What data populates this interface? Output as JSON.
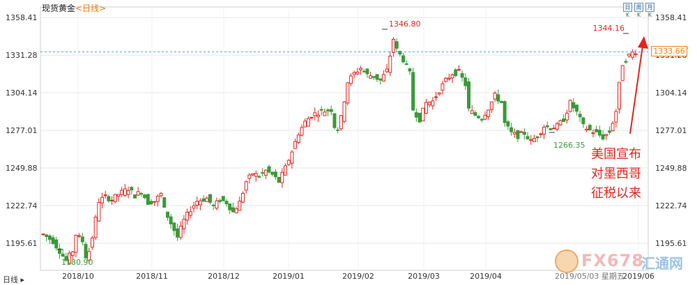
{
  "header": {
    "instrument": "现货黄金",
    "timeframe": "<日线>",
    "tools": [
      "日K",
      "周K",
      "月K"
    ]
  },
  "period_button": "日线 ▸",
  "current_price_label": "1333.66",
  "annotation": {
    "lines": [
      "美国宣布",
      "对墨西哥",
      "征税以来"
    ]
  },
  "watermark": {
    "brand": "FX678",
    "brand_cn": "汇通网",
    "date": "2019/05/03  星期五"
  },
  "colors": {
    "up": "#e0261f",
    "down": "#3a9a3a",
    "grid": "#e6e6e6",
    "axis_text": "#333333",
    "hline": "#4aa3df",
    "annot": "#e0261f",
    "marker_high": "#e0261f",
    "marker_low": "#3a9a3a"
  },
  "chart_data": {
    "type": "candlestick",
    "title": "现货黄金",
    "y_ticks": [
      1195.61,
      1222.74,
      1249.88,
      1277.01,
      1304.14,
      1331.28,
      1358.41
    ],
    "y_range": [
      1176.0,
      1364.0
    ],
    "x_ticks": [
      "2018/10",
      "2018/11",
      "2018/12",
      "2019/01",
      "2019/02",
      "2019/03",
      "2019/04",
      "2019/06"
    ],
    "current_price": 1333.66,
    "horizontal_line": 1333.66,
    "series_shape": [
      [
        0,
        1202
      ],
      [
        3,
        1197
      ],
      [
        5,
        1190
      ],
      [
        7,
        1183
      ],
      [
        9,
        1190
      ],
      [
        10,
        1202
      ],
      [
        12,
        1197
      ],
      [
        13,
        1186
      ],
      [
        14,
        1190
      ],
      [
        15,
        1200
      ],
      [
        17,
        1226
      ],
      [
        19,
        1229
      ],
      [
        21,
        1227
      ],
      [
        23,
        1231
      ],
      [
        26,
        1235
      ],
      [
        28,
        1230
      ],
      [
        30,
        1233
      ],
      [
        32,
        1225
      ],
      [
        34,
        1226
      ],
      [
        36,
        1231
      ],
      [
        37,
        1220
      ],
      [
        39,
        1210
      ],
      [
        40,
        1205
      ],
      [
        41,
        1200
      ],
      [
        43,
        1212
      ],
      [
        45,
        1220
      ],
      [
        47,
        1226
      ],
      [
        50,
        1228
      ],
      [
        52,
        1222
      ],
      [
        54,
        1227
      ],
      [
        56,
        1225
      ],
      [
        58,
        1218
      ],
      [
        60,
        1225
      ],
      [
        62,
        1240
      ],
      [
        64,
        1246
      ],
      [
        66,
        1244
      ],
      [
        68,
        1248
      ],
      [
        70,
        1245
      ],
      [
        72,
        1240
      ],
      [
        74,
        1250
      ],
      [
        76,
        1262
      ],
      [
        78,
        1275
      ],
      [
        80,
        1283
      ],
      [
        82,
        1288
      ],
      [
        84,
        1290
      ],
      [
        86,
        1291
      ],
      [
        88,
        1292
      ],
      [
        89,
        1280
      ],
      [
        90,
        1278
      ],
      [
        91,
        1286
      ],
      [
        93,
        1312
      ],
      [
        95,
        1318
      ],
      [
        97,
        1322
      ],
      [
        99,
        1317
      ],
      [
        101,
        1316
      ],
      [
        103,
        1313
      ],
      [
        105,
        1320
      ],
      [
        106,
        1331
      ],
      [
        107,
        1343
      ],
      [
        108,
        1335
      ],
      [
        110,
        1328
      ],
      [
        112,
        1318
      ],
      [
        113,
        1292
      ],
      [
        115,
        1285
      ],
      [
        117,
        1297
      ],
      [
        119,
        1298
      ],
      [
        121,
        1306
      ],
      [
        123,
        1313
      ],
      [
        125,
        1318
      ],
      [
        127,
        1319
      ],
      [
        129,
        1310
      ],
      [
        130,
        1292
      ],
      [
        132,
        1288
      ],
      [
        134,
        1286
      ],
      [
        136,
        1293
      ],
      [
        138,
        1302
      ],
      [
        140,
        1297
      ],
      [
        141,
        1282
      ],
      [
        143,
        1275
      ],
      [
        145,
        1273
      ],
      [
        147,
        1275
      ],
      [
        149,
        1269
      ],
      [
        151,
        1273
      ],
      [
        153,
        1280
      ],
      [
        155,
        1279
      ],
      [
        157,
        1280
      ],
      [
        159,
        1285
      ],
      [
        161,
        1297
      ],
      [
        163,
        1290
      ],
      [
        165,
        1280
      ],
      [
        167,
        1277
      ],
      [
        169,
        1275
      ],
      [
        171,
        1272
      ],
      [
        173,
        1276
      ],
      [
        174,
        1283
      ],
      [
        175,
        1291
      ],
      [
        176,
        1310
      ],
      [
        177,
        1325
      ],
      [
        178,
        1328
      ],
      [
        179,
        1331
      ],
      [
        180,
        1333
      ],
      [
        181,
        1334
      ]
    ],
    "markers": [
      {
        "label": "1346.80",
        "kind": "high",
        "value": 1346.8
      },
      {
        "label": "1344.16",
        "kind": "high",
        "value": 1344.16
      },
      {
        "label": "1180.90",
        "kind": "low",
        "value": 1180.9
      },
      {
        "label": "1266.35",
        "kind": "low",
        "value": 1266.35
      }
    ]
  }
}
